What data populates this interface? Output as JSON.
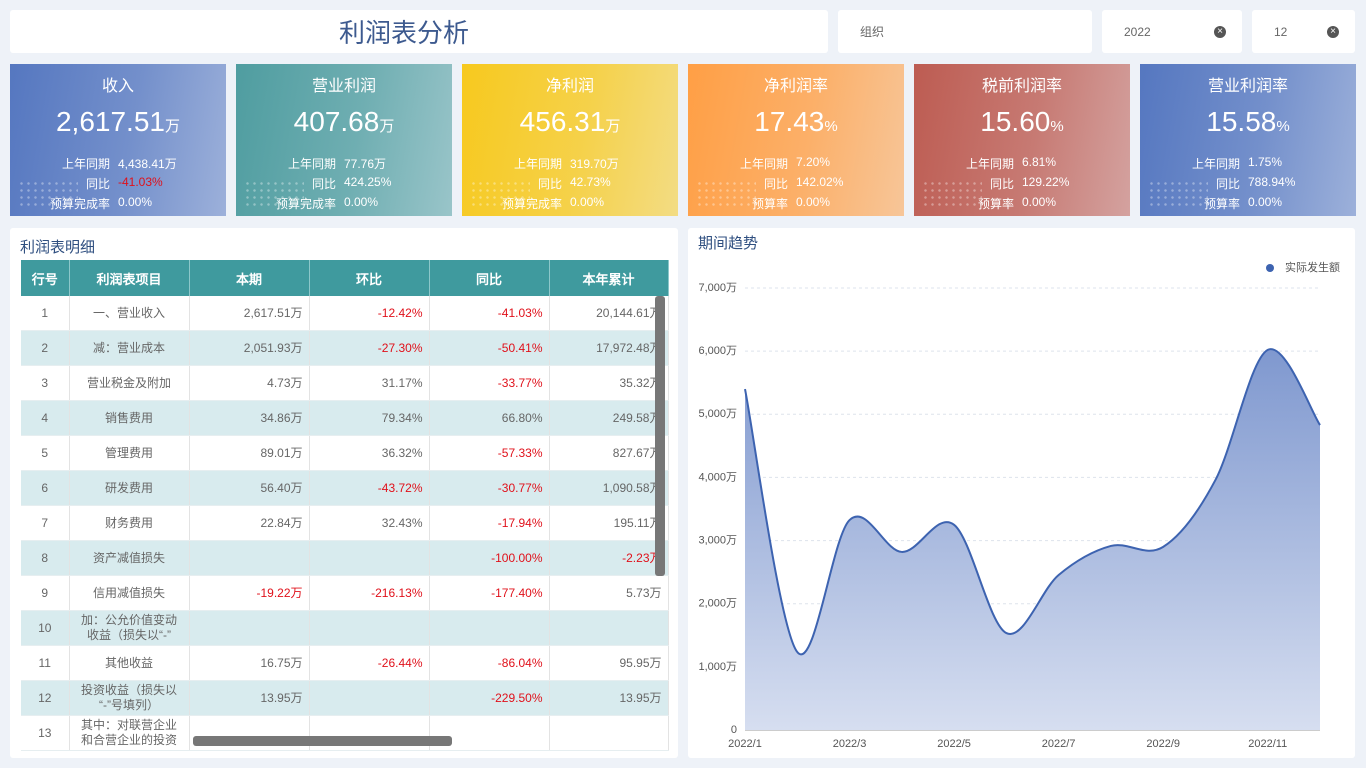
{
  "header": {
    "title": "利润表分析",
    "filters": [
      "组织",
      "2022",
      "12"
    ]
  },
  "kpis": [
    {
      "title": "收入",
      "value": "2,617.51",
      "unit": "万",
      "color": "#5577c0",
      "rows": [
        [
          "上年同期",
          "4,438.41万"
        ],
        [
          "同比",
          "-41.03%"
        ],
        [
          "预算完成率",
          "0.00%"
        ]
      ]
    },
    {
      "title": "营业利润",
      "value": "407.68",
      "unit": "万",
      "color": "#4f9da0",
      "rows": [
        [
          "上年同期",
          "77.76万"
        ],
        [
          "同比",
          "424.25%"
        ],
        [
          "预算完成率",
          "0.00%"
        ]
      ]
    },
    {
      "title": "净利润",
      "value": "456.31",
      "unit": "万",
      "color": "#f7c91e",
      "rows": [
        [
          "上年同期",
          "319.70万"
        ],
        [
          "同比",
          "42.73%"
        ],
        [
          "预算完成率",
          "0.00%"
        ]
      ]
    },
    {
      "title": "净利润率",
      "value": "17.43",
      "unit": "%",
      "color": "#ff9f45",
      "rows": [
        [
          "上年同期",
          "7.20%"
        ],
        [
          "同比",
          "142.02%"
        ],
        [
          "预算率",
          "0.00%"
        ]
      ]
    },
    {
      "title": "税前利润率",
      "value": "15.60",
      "unit": "%",
      "color": "#bd5c52",
      "rows": [
        [
          "上年同期",
          "6.81%"
        ],
        [
          "同比",
          "129.22%"
        ],
        [
          "预算率",
          "0.00%"
        ]
      ]
    },
    {
      "title": "营业利润率",
      "value": "15.58",
      "unit": "%",
      "color": "#5577c0",
      "rows": [
        [
          "上年同期",
          "1.75%"
        ],
        [
          "同比",
          "788.94%"
        ],
        [
          "预算率",
          "0.00%"
        ]
      ]
    }
  ],
  "table": {
    "title": "利润表明细",
    "columns": [
      "行号",
      "利润表项目",
      "本期",
      "环比",
      "同比",
      "本年累计"
    ],
    "rows": [
      [
        "1",
        "一、营业收入",
        "2,617.51万",
        "-12.42%",
        "-41.03%",
        "20,144.61万"
      ],
      [
        "2",
        "减：营业成本",
        "2,051.93万",
        "-27.30%",
        "-50.41%",
        "17,972.48万"
      ],
      [
        "3",
        "营业税金及附加",
        "4.73万",
        "31.17%",
        "-33.77%",
        "35.32万"
      ],
      [
        "4",
        "销售费用",
        "34.86万",
        "79.34%",
        "66.80%",
        "249.58万"
      ],
      [
        "5",
        "管理费用",
        "89.01万",
        "36.32%",
        "-57.33%",
        "827.67万"
      ],
      [
        "6",
        "研发费用",
        "56.40万",
        "-43.72%",
        "-30.77%",
        "1,090.58万"
      ],
      [
        "7",
        "财务费用",
        "22.84万",
        "32.43%",
        "-17.94%",
        "195.11万"
      ],
      [
        "8",
        "资产减值损失",
        null,
        null,
        "-100.00%",
        "-2.23万"
      ],
      [
        "9",
        "信用减值损失",
        "-19.22万",
        "-216.13%",
        "-177.40%",
        "5.73万"
      ],
      [
        "10",
        "加：公允价值变动收益（损失以“-”",
        null,
        null,
        null,
        null
      ],
      [
        "11",
        "其他收益",
        "16.75万",
        "-26.44%",
        "-86.04%",
        "95.95万"
      ],
      [
        "12",
        "投资收益（损失以“-”号填列）",
        "13.95万",
        null,
        "-229.50%",
        "13.95万"
      ],
      [
        "13",
        "其中：对联营企业和合营企业的投资",
        null,
        null,
        null,
        null
      ]
    ]
  },
  "chart_data": {
    "type": "area",
    "title": "期间趋势",
    "categories": [
      "2022/1",
      null,
      "2022/3",
      null,
      "2022/5",
      null,
      "2022/7",
      null,
      "2022/9",
      null,
      "2022/11",
      null
    ],
    "series": [
      {
        "name": "实际发生额",
        "color": "#3d63b0",
        "values": [
          5400,
          1235,
          3325,
          2820,
          3250,
          1535,
          2455,
          2915,
          2900,
          3960,
          6020,
          4830
        ]
      }
    ],
    "ylim": [
      0,
      7000
    ],
    "yticks": [
      0,
      {
        "value": 1000,
        "label": "1,000万"
      },
      {
        "value": 2000,
        "label": "2,000万"
      },
      {
        "value": 3000,
        "label": "3,000万"
      },
      {
        "value": 4000,
        "label": "4,000万"
      },
      {
        "value": 5000,
        "label": "5,000万"
      },
      {
        "value": 6000,
        "label": "6,000万"
      },
      {
        "value": 7000,
        "label": "7,000万"
      }
    ],
    "grid": true,
    "legend": "top-right"
  }
}
